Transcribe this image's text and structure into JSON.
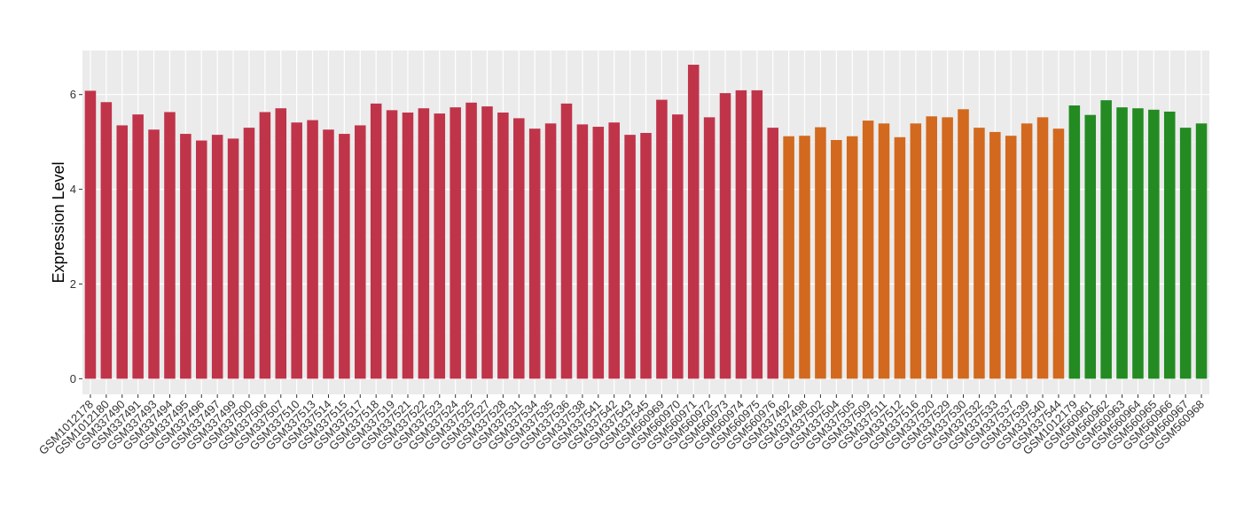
{
  "chart_data": {
    "type": "bar",
    "y_label": "Expression Level",
    "categories": [
      "GSM1012178",
      "GSM1012180",
      "GSM337490",
      "GSM337491",
      "GSM337493",
      "GSM337494",
      "GSM337495",
      "GSM337496",
      "GSM337497",
      "GSM337499",
      "GSM337500",
      "GSM337506",
      "GSM337507",
      "GSM337510",
      "GSM337513",
      "GSM337514",
      "GSM337515",
      "GSM337517",
      "GSM337518",
      "GSM337519",
      "GSM337521",
      "GSM337522",
      "GSM337523",
      "GSM337524",
      "GSM337525",
      "GSM337527",
      "GSM337528",
      "GSM337531",
      "GSM337534",
      "GSM337535",
      "GSM337536",
      "GSM337538",
      "GSM337541",
      "GSM337542",
      "GSM337543",
      "GSM337545",
      "GSM560969",
      "GSM560970",
      "GSM560971",
      "GSM560972",
      "GSM560973",
      "GSM560974",
      "GSM560975",
      "GSM560976",
      "GSM337492",
      "GSM337498",
      "GSM337502",
      "GSM337504",
      "GSM337505",
      "GSM337509",
      "GSM337511",
      "GSM337512",
      "GSM337516",
      "GSM337520",
      "GSM337529",
      "GSM337530",
      "GSM337532",
      "GSM337533",
      "GSM337537",
      "GSM337539",
      "GSM337540",
      "GSM337544",
      "GSM1012179",
      "GSM560961",
      "GSM560962",
      "GSM560963",
      "GSM560964",
      "GSM560965",
      "GSM560966",
      "GSM560967",
      "GSM560968"
    ],
    "values": [
      6.08,
      5.84,
      5.35,
      5.58,
      5.26,
      5.63,
      5.17,
      5.03,
      5.15,
      5.07,
      5.3,
      5.63,
      5.71,
      5.41,
      5.46,
      5.26,
      5.17,
      5.35,
      5.81,
      5.67,
      5.62,
      5.71,
      5.6,
      5.73,
      5.83,
      5.75,
      5.62,
      5.5,
      5.28,
      5.39,
      5.81,
      5.37,
      5.32,
      5.41,
      5.15,
      5.19,
      5.89,
      5.58,
      6.63,
      5.52,
      6.03,
      6.09,
      6.09,
      5.3,
      5.12,
      5.13,
      5.31,
      5.04,
      5.12,
      5.45,
      5.39,
      5.1,
      5.39,
      5.54,
      5.52,
      5.69,
      5.3,
      5.21,
      5.13,
      5.39,
      5.52,
      5.28,
      5.77,
      5.57,
      5.88,
      5.73,
      5.71,
      5.68,
      5.64,
      5.3,
      5.39
    ],
    "colors": [
      "#c0344a",
      "#c0344a",
      "#c0344a",
      "#c0344a",
      "#c0344a",
      "#c0344a",
      "#c0344a",
      "#c0344a",
      "#c0344a",
      "#c0344a",
      "#c0344a",
      "#c0344a",
      "#c0344a",
      "#c0344a",
      "#c0344a",
      "#c0344a",
      "#c0344a",
      "#c0344a",
      "#c0344a",
      "#c0344a",
      "#c0344a",
      "#c0344a",
      "#c0344a",
      "#c0344a",
      "#c0344a",
      "#c0344a",
      "#c0344a",
      "#c0344a",
      "#c0344a",
      "#c0344a",
      "#c0344a",
      "#c0344a",
      "#c0344a",
      "#c0344a",
      "#c0344a",
      "#c0344a",
      "#c0344a",
      "#c0344a",
      "#c0344a",
      "#c0344a",
      "#c0344a",
      "#c0344a",
      "#c0344a",
      "#c0344a",
      "#d2691e",
      "#d2691e",
      "#d2691e",
      "#d2691e",
      "#d2691e",
      "#d2691e",
      "#d2691e",
      "#d2691e",
      "#d2691e",
      "#d2691e",
      "#d2691e",
      "#d2691e",
      "#d2691e",
      "#d2691e",
      "#d2691e",
      "#d2691e",
      "#d2691e",
      "#d2691e",
      "#238b22",
      "#238b22",
      "#238b22",
      "#238b22",
      "#238b22",
      "#238b22",
      "#238b22",
      "#238b22",
      "#238b22"
    ],
    "ylim": [
      -0.33,
      6.93
    ],
    "yticks": [
      0,
      2,
      4,
      6
    ],
    "grid": true
  }
}
